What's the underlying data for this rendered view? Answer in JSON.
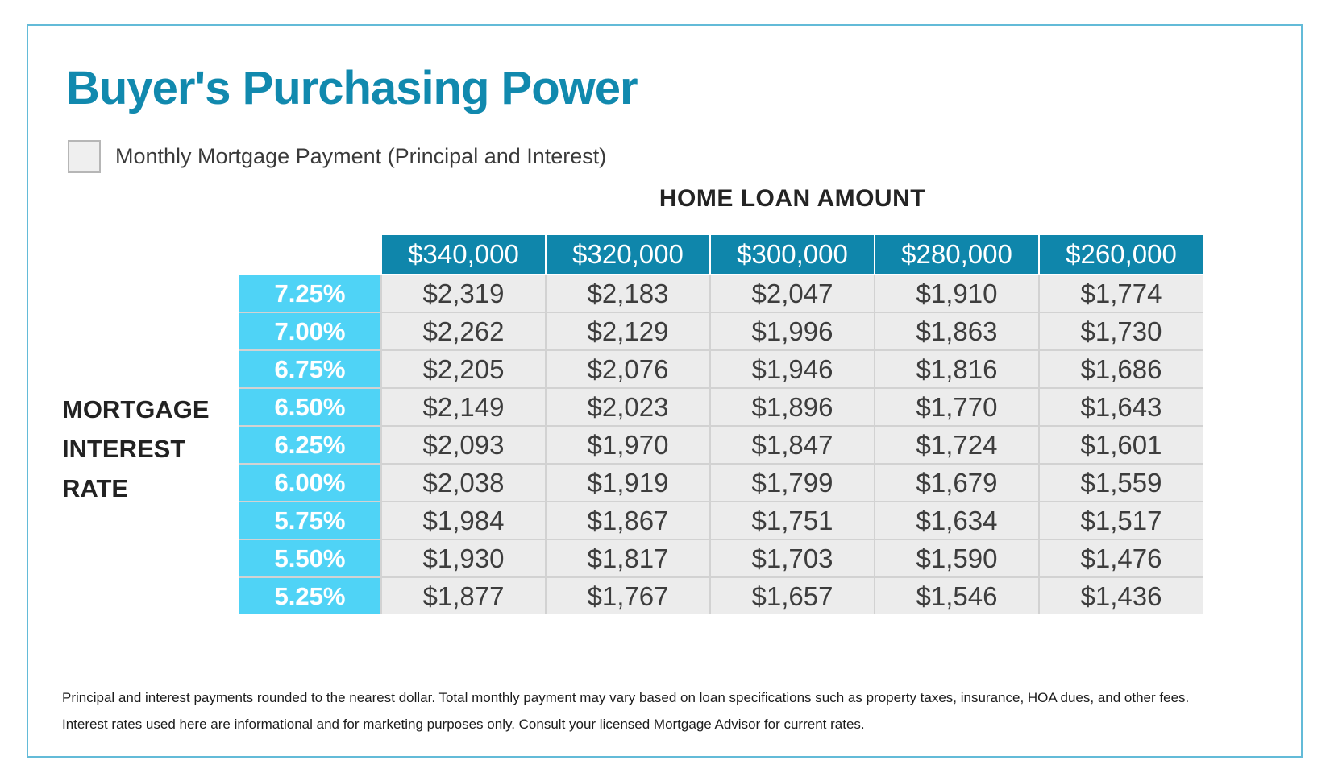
{
  "title": "Buyer's Purchasing Power",
  "legend": {
    "swatch": "gray-square",
    "label": "Monthly Mortgage Payment (Principal and Interest)"
  },
  "table": {
    "column_group_label": "HOME LOAN AMOUNT",
    "row_group_label": "MORTGAGE INTEREST RATE",
    "row_group_label_lines": {
      "0": "MORTGAGE",
      "1": "INTEREST",
      "2": "RATE"
    },
    "loan_amounts": [
      "$340,000",
      "$320,000",
      "$300,000",
      "$280,000",
      "$260,000"
    ],
    "rows": [
      {
        "rate": "7.25%",
        "payments": [
          "$2,319",
          "$2,183",
          "$2,047",
          "$1,910",
          "$1,774"
        ]
      },
      {
        "rate": "7.00%",
        "payments": [
          "$2,262",
          "$2,129",
          "$1,996",
          "$1,863",
          "$1,730"
        ]
      },
      {
        "rate": "6.75%",
        "payments": [
          "$2,205",
          "$2,076",
          "$1,946",
          "$1,816",
          "$1,686"
        ]
      },
      {
        "rate": "6.50%",
        "payments": [
          "$2,149",
          "$2,023",
          "$1,896",
          "$1,770",
          "$1,643"
        ]
      },
      {
        "rate": "6.25%",
        "payments": [
          "$2,093",
          "$1,970",
          "$1,847",
          "$1,724",
          "$1,601"
        ]
      },
      {
        "rate": "6.00%",
        "payments": [
          "$2,038",
          "$1,919",
          "$1,799",
          "$1,679",
          "$1,559"
        ]
      },
      {
        "rate": "5.75%",
        "payments": [
          "$1,984",
          "$1,867",
          "$1,751",
          "$1,634",
          "$1,517"
        ]
      },
      {
        "rate": "5.50%",
        "payments": [
          "$1,930",
          "$1,817",
          "$1,703",
          "$1,590",
          "$1,476"
        ]
      },
      {
        "rate": "5.25%",
        "payments": [
          "$1,877",
          "$1,767",
          "$1,657",
          "$1,546",
          "$1,436"
        ]
      }
    ]
  },
  "footnotes": {
    "line1": "Principal and interest payments rounded to the nearest dollar. Total monthly payment may vary based on loan specifications such as property taxes, insurance, HOA dues, and other fees.",
    "line2": "Interest rates used here are informational and for marketing purposes only. Consult your licensed Mortgage Advisor for current rates."
  },
  "colors": {
    "title": "#1189ae",
    "header_bg": "#0f86ab",
    "rate_bg": "#4fd3f6",
    "cell_bg": "#ececec",
    "grid_line": "#d2d2d2",
    "card_border": "#63bbd8",
    "text_dark": "#3d3d3d"
  },
  "chart_data": {
    "type": "table",
    "title": "Buyer's Purchasing Power",
    "subtitle": "Monthly Mortgage Payment (Principal and Interest)",
    "column_header_group": "HOME LOAN AMOUNT",
    "row_header_group": "MORTGAGE INTEREST RATE",
    "columns": [
      "$340,000",
      "$320,000",
      "$300,000",
      "$280,000",
      "$260,000"
    ],
    "rows": [
      "7.25%",
      "7.00%",
      "6.75%",
      "6.50%",
      "6.25%",
      "6.00%",
      "5.75%",
      "5.50%",
      "5.25%"
    ],
    "values": [
      [
        2319,
        2183,
        2047,
        1910,
        1774
      ],
      [
        2262,
        2129,
        1996,
        1863,
        1730
      ],
      [
        2205,
        2076,
        1946,
        1816,
        1686
      ],
      [
        2149,
        2023,
        1896,
        1770,
        1643
      ],
      [
        2093,
        1970,
        1847,
        1724,
        1601
      ],
      [
        2038,
        1919,
        1799,
        1679,
        1559
      ],
      [
        1984,
        1867,
        1751,
        1634,
        1517
      ],
      [
        1930,
        1817,
        1703,
        1590,
        1476
      ],
      [
        1877,
        1767,
        1657,
        1546,
        1436
      ]
    ],
    "notes": [
      "Principal and interest payments rounded to the nearest dollar. Total monthly payment may vary based on loan specifications such as property taxes, insurance, HOA dues, and other fees.",
      "Interest rates used here are informational and for marketing purposes only. Consult your licensed Mortgage Advisor for current rates."
    ]
  }
}
